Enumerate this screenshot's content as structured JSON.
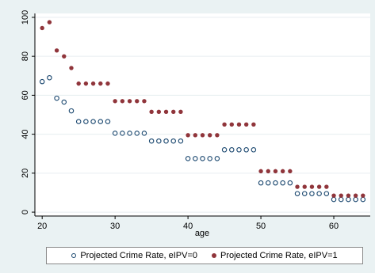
{
  "chart_data": {
    "type": "scatter",
    "title": "",
    "xlabel": "age",
    "ylabel": "",
    "xlim": [
      19,
      65
    ],
    "ylim": [
      -2,
      102
    ],
    "xticks": [
      20,
      30,
      40,
      50,
      60
    ],
    "yticks": [
      0,
      20,
      40,
      60,
      80,
      100
    ],
    "grid": "horizontal",
    "legend_position": "bottom",
    "series": [
      {
        "name": "Projected Crime Rate, eIPV=0",
        "marker": "hollow",
        "color": "#1a476f",
        "x": [
          20,
          21,
          22,
          23,
          24,
          25,
          26,
          27,
          28,
          29,
          30,
          31,
          32,
          33,
          34,
          35,
          36,
          37,
          38,
          39,
          40,
          41,
          42,
          43,
          44,
          45,
          46,
          47,
          48,
          49,
          50,
          51,
          52,
          53,
          54,
          55,
          56,
          57,
          58,
          59,
          60,
          61,
          62,
          63,
          64
        ],
        "y": [
          67,
          69,
          58.5,
          56.5,
          52,
          46.5,
          46.5,
          46.5,
          46.5,
          46.5,
          40.5,
          40.5,
          40.5,
          40.5,
          40.5,
          36.5,
          36.5,
          36.5,
          36.5,
          36.5,
          27.5,
          27.5,
          27.5,
          27.5,
          27.5,
          32,
          32,
          32,
          32,
          32,
          15,
          15,
          15,
          15,
          15,
          9.5,
          9.5,
          9.5,
          9.5,
          9.5,
          6.5,
          6.5,
          6.5,
          6.5,
          6.5
        ]
      },
      {
        "name": "Projected Crime Rate, eIPV=1",
        "marker": "filled",
        "color": "#90353b",
        "x": [
          20,
          21,
          22,
          23,
          24,
          25,
          26,
          27,
          28,
          29,
          30,
          31,
          32,
          33,
          34,
          35,
          36,
          37,
          38,
          39,
          40,
          41,
          42,
          43,
          44,
          45,
          46,
          47,
          48,
          49,
          50,
          51,
          52,
          53,
          54,
          55,
          56,
          57,
          58,
          59,
          60,
          61,
          62,
          63,
          64
        ],
        "y": [
          94.5,
          97.5,
          83,
          80,
          74,
          66,
          66,
          66,
          66,
          66,
          57,
          57,
          57,
          57,
          57,
          51.5,
          51.5,
          51.5,
          51.5,
          51.5,
          39.5,
          39.5,
          39.5,
          39.5,
          39.5,
          45,
          45,
          45,
          45,
          45,
          21,
          21,
          21,
          21,
          21,
          13,
          13,
          13,
          13,
          13,
          8.5,
          8.5,
          8.5,
          8.5,
          8.5
        ]
      }
    ]
  },
  "legend": {
    "items": [
      "Projected Crime Rate, eIPV=0",
      "Projected Crime Rate, eIPV=1"
    ]
  }
}
